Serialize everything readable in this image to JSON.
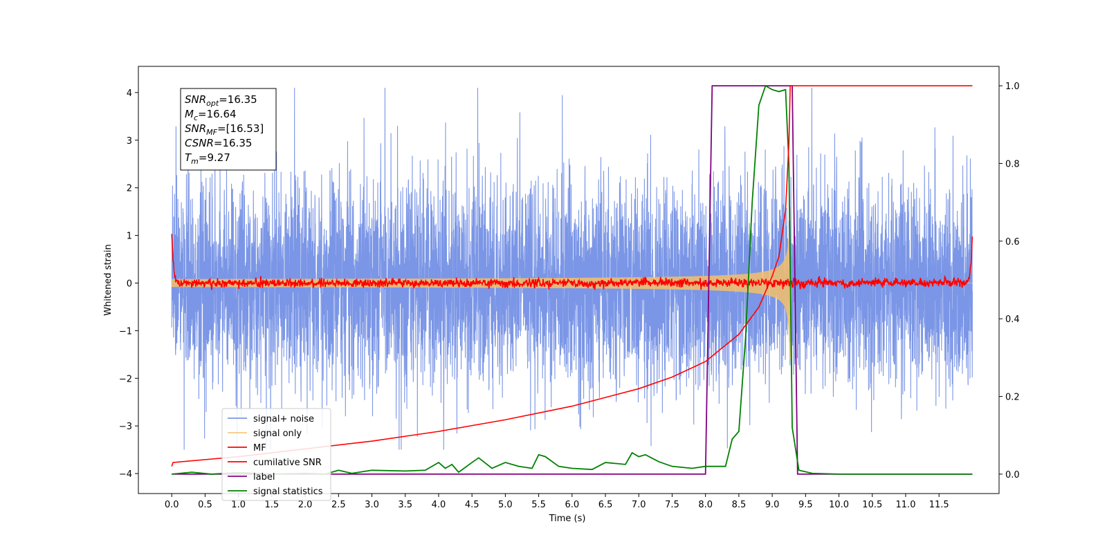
{
  "chart_data": {
    "type": "line",
    "xlabel": "Time (s)",
    "ylabel": "Whitened strain",
    "xlim": [
      -0.5,
      12.4
    ],
    "ylim": [
      -4.42,
      4.55
    ],
    "ylim_right": [
      -0.05,
      1.05
    ],
    "xticks": [
      "0.0",
      "0.5",
      "1.0",
      "1.5",
      "2.0",
      "2.5",
      "3.0",
      "3.5",
      "4.0",
      "4.5",
      "5.0",
      "5.5",
      "6.0",
      "6.5",
      "7.0",
      "7.5",
      "8.0",
      "8.5",
      "9.0",
      "9.5",
      "10.0",
      "10.5",
      "11.0",
      "11.5"
    ],
    "yticks_left": [
      "4",
      "3",
      "2",
      "1",
      "0",
      "−1",
      "−2",
      "−3",
      "−4"
    ],
    "yticks_right": [
      "1.0",
      "0.8",
      "0.6",
      "0.4",
      "0.2",
      "0.0"
    ],
    "grid": false,
    "legend_position": "lower-left",
    "annotation": {
      "snr_opt": "=16.35",
      "mc": "=16.64",
      "snr_mf": "=[16.53]",
      "csnr": "=16.35",
      "tm": "=9.27"
    },
    "series": [
      {
        "name": "signal+ noise",
        "axis": "left",
        "color": "#7b96e6",
        "noise_amplitude": 1.9,
        "t_start": 0.0,
        "t_end": 12.0
      },
      {
        "name": "signal only",
        "axis": "left",
        "color": "#f5c06a",
        "chirp_end": 9.27,
        "peak_amplitude": 1.6
      },
      {
        "name": "MF",
        "axis": "left",
        "color": "#ff0000",
        "x": [
          0.0,
          0.03,
          0.1,
          11.9,
          11.97,
          12.0
        ],
        "y": [
          1.0,
          0.3,
          0.0,
          0.0,
          0.3,
          1.0
        ]
      },
      {
        "name": "cumilative SNR",
        "axis": "right",
        "color": "#ff0000",
        "x": [
          0.0,
          0.02,
          1.0,
          2.0,
          3.0,
          4.0,
          5.0,
          6.0,
          7.0,
          7.5,
          8.0,
          8.5,
          8.8,
          9.0,
          9.1,
          9.2,
          9.25,
          9.27,
          9.3,
          12.0
        ],
        "y": [
          0.02,
          0.03,
          0.045,
          0.065,
          0.085,
          0.11,
          0.14,
          0.175,
          0.22,
          0.25,
          0.29,
          0.36,
          0.43,
          0.51,
          0.56,
          0.68,
          0.85,
          1.0,
          1.0,
          1.0
        ]
      },
      {
        "name": "label",
        "axis": "right",
        "color": "#800080",
        "x": [
          0.0,
          8.0,
          8.1,
          9.3,
          9.38,
          12.0
        ],
        "y": [
          0.0,
          0.0,
          1.0,
          1.0,
          0.0,
          0.0
        ]
      },
      {
        "name": "signal statistics",
        "axis": "right",
        "color": "#008000",
        "x": [
          0.0,
          0.3,
          0.6,
          1.0,
          1.5,
          2.0,
          2.3,
          2.5,
          2.7,
          3.0,
          3.5,
          3.8,
          4.0,
          4.1,
          4.2,
          4.3,
          4.5,
          4.6,
          4.8,
          5.0,
          5.2,
          5.4,
          5.5,
          5.6,
          5.8,
          6.0,
          6.3,
          6.5,
          6.8,
          6.9,
          7.0,
          7.1,
          7.3,
          7.5,
          7.8,
          8.0,
          8.3,
          8.4,
          8.5,
          8.6,
          8.7,
          8.8,
          8.9,
          9.0,
          9.1,
          9.2,
          9.25,
          9.3,
          9.4,
          9.6,
          10.0,
          12.0
        ],
        "y": [
          0.0,
          0.005,
          0.0,
          0.004,
          0.0,
          0.002,
          0.0,
          0.01,
          0.002,
          0.01,
          0.008,
          0.01,
          0.03,
          0.015,
          0.025,
          0.005,
          0.03,
          0.042,
          0.015,
          0.03,
          0.02,
          0.015,
          0.05,
          0.045,
          0.02,
          0.015,
          0.012,
          0.03,
          0.025,
          0.055,
          0.045,
          0.05,
          0.032,
          0.02,
          0.015,
          0.02,
          0.02,
          0.09,
          0.11,
          0.35,
          0.7,
          0.95,
          1.0,
          0.99,
          0.985,
          0.99,
          0.8,
          0.12,
          0.01,
          0.002,
          0.0,
          0.0
        ]
      }
    ]
  }
}
